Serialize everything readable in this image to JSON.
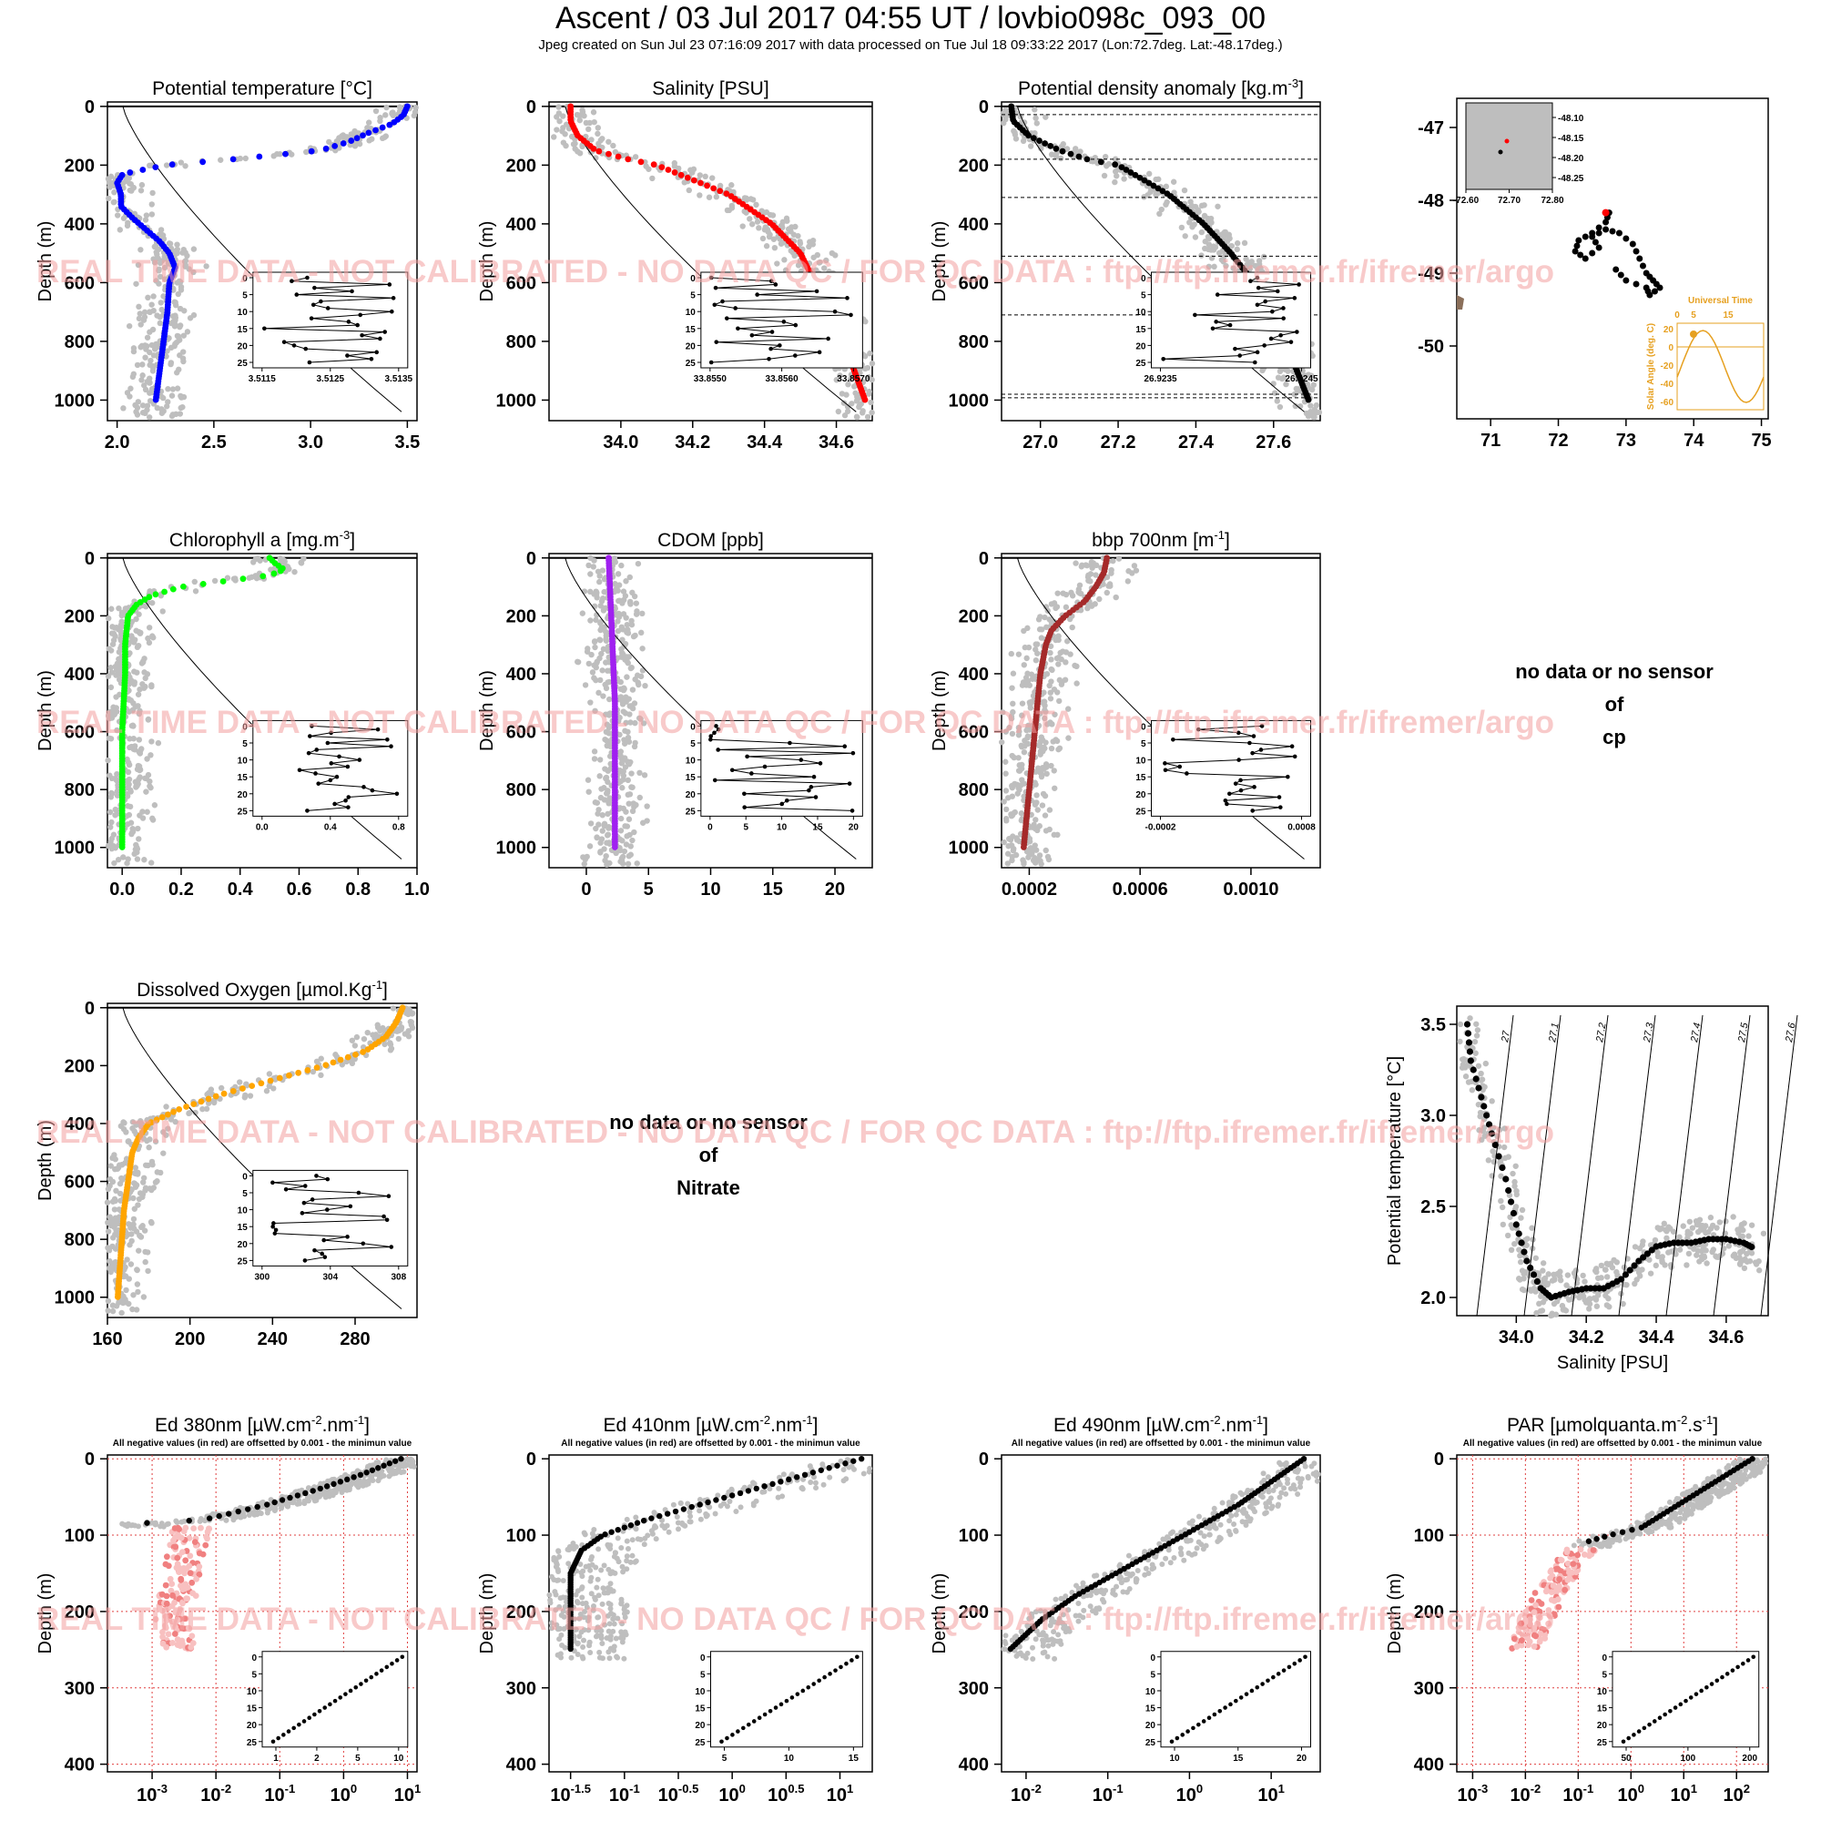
{
  "header": {
    "title": "Ascent / 03 Jul 2017 04:55 UT /  lovbio098c_093_00",
    "subtitle": "Jpeg created on Sun Jul 23 07:16:09 2017 with data processed on Tue Jul 18 09:33:22 2017 (Lon:72.7deg. Lat:-48.17deg.)"
  },
  "watermark": "REAL TIME DATA - NOT CALIBRATED - NO DATA QC   /  FOR QC DATA : ftp://ftp.ifremer.fr/ifremer/argo",
  "depth_label": "Depth (m)",
  "negative_note": "All negative values (in red) are offsetted by 0.001 - the minimun value",
  "colors": {
    "temperature": "#0000ff",
    "salinity": "#ff0000",
    "density": "#000000",
    "chlorophyll": "#00ff00",
    "cdom": "#a020f0",
    "bbp": "#a52a2a",
    "oxygen": "#ffa500",
    "radiometry": "#000000",
    "negative": "#f08080",
    "climatology": "#bebebe",
    "orange_axis": "#e6a020"
  },
  "nodata_cp": [
    "no data or no sensor",
    "of",
    "cp"
  ],
  "nodata_nitrate": [
    "no data or no sensor",
    "of",
    "Nitrate"
  ],
  "chart_data": [
    {
      "type": "scatter",
      "title": "Potential temperature [°C]",
      "ylabel": "Depth (m)",
      "xlim": [
        1.95,
        3.55
      ],
      "ylim": [
        1070,
        -15
      ],
      "grid": false,
      "xticks": [
        "2.0",
        "2.5",
        "3.0",
        "3.5"
      ],
      "yticks": [
        "0",
        "200",
        "400",
        "600",
        "800",
        "1000"
      ],
      "profile": {
        "depth": [
          0,
          30,
          60,
          90,
          120,
          150,
          180,
          200,
          230,
          260,
          300,
          340,
          380,
          420,
          460,
          500,
          550,
          600,
          700,
          800,
          900,
          1000
        ],
        "value": [
          3.5,
          3.48,
          3.42,
          3.3,
          3.2,
          3.05,
          2.6,
          2.25,
          2.03,
          2.0,
          2.02,
          2.02,
          2.08,
          2.15,
          2.22,
          2.27,
          2.3,
          2.27,
          2.26,
          2.24,
          2.22,
          2.2
        ]
      },
      "inset": {
        "xticks": [
          "3.5115",
          "3.5125",
          "3.5135"
        ],
        "yticks": [
          "0",
          "5",
          "10",
          "15",
          "20",
          "25"
        ]
      }
    },
    {
      "type": "scatter",
      "title": "Salinity [PSU]",
      "ylabel": "Depth (m)",
      "xlim": [
        33.8,
        34.7
      ],
      "ylim": [
        1070,
        -15
      ],
      "grid": false,
      "xticks": [
        "34.0",
        "34.2",
        "34.4",
        "34.6"
      ],
      "yticks": [
        "0",
        "200",
        "400",
        "600",
        "800",
        "1000"
      ],
      "profile": {
        "depth": [
          0,
          50,
          100,
          150,
          180,
          200,
          250,
          300,
          400,
          500,
          600,
          700,
          800,
          900,
          1000
        ],
        "value": [
          33.86,
          33.86,
          33.88,
          33.93,
          34.02,
          34.1,
          34.2,
          34.3,
          34.42,
          34.5,
          34.54,
          34.58,
          34.62,
          34.65,
          34.68
        ]
      },
      "inset": {
        "xticks": [
          "33.8550",
          "33.8560",
          "33.8570"
        ],
        "yticks": [
          "0",
          "5",
          "10",
          "15",
          "20",
          "25"
        ]
      }
    },
    {
      "type": "scatter",
      "title": "Potential density anomaly [kg.m",
      "title_sup": "-3",
      "title_end": "]",
      "ylabel": "Depth (m)",
      "xlim": [
        26.9,
        27.72
      ],
      "ylim": [
        1070,
        -15
      ],
      "grid": false,
      "xticks": [
        "27.0",
        "27.2",
        "27.4",
        "27.6"
      ],
      "yticks": [
        "0",
        "200",
        "400",
        "600",
        "800",
        "1000"
      ],
      "mld_lines": [
        28,
        180,
        310,
        510,
        710,
        980,
        992
      ],
      "profile": {
        "depth": [
          0,
          50,
          100,
          150,
          180,
          200,
          300,
          400,
          500,
          600,
          700,
          800,
          900,
          1000
        ],
        "value": [
          26.925,
          26.93,
          26.97,
          27.05,
          27.12,
          27.2,
          27.33,
          27.42,
          27.49,
          27.55,
          27.59,
          27.63,
          27.66,
          27.69
        ]
      },
      "inset": {
        "xticks": [
          "26.9235",
          "26.9245"
        ],
        "yticks": [
          "0",
          "5",
          "10",
          "15",
          "20",
          "25"
        ]
      }
    },
    {
      "type": "scatter",
      "title": "Chlorophyll a [mg.m",
      "title_sup": "-3",
      "title_end": "]",
      "ylabel": "Depth (m)",
      "xlim": [
        -0.05,
        1.0
      ],
      "ylim": [
        1070,
        -15
      ],
      "grid": false,
      "xticks": [
        "0.0",
        "0.2",
        "0.4",
        "0.6",
        "0.8",
        "1.0"
      ],
      "yticks": [
        "0",
        "200",
        "400",
        "600",
        "800",
        "1000"
      ],
      "profile": {
        "depth": [
          0,
          20,
          40,
          60,
          80,
          100,
          130,
          160,
          200,
          300,
          400,
          600,
          800,
          1000
        ],
        "value": [
          0.5,
          0.52,
          0.55,
          0.5,
          0.35,
          0.2,
          0.1,
          0.05,
          0.02,
          0.01,
          0.01,
          0.0,
          0.0,
          0.0
        ]
      },
      "inset": {
        "xticks": [
          "0.0",
          "0.4",
          "0.8"
        ],
        "yticks": [
          "0",
          "5",
          "10",
          "15",
          "20",
          "25"
        ]
      }
    },
    {
      "type": "scatter",
      "title": "CDOM [ppb]",
      "ylabel": "Depth (m)",
      "xlim": [
        -3,
        23
      ],
      "ylim": [
        1070,
        -15
      ],
      "grid": false,
      "xticks": [
        "0",
        "5",
        "10",
        "15",
        "20"
      ],
      "yticks": [
        "0",
        "200",
        "400",
        "600",
        "800",
        "1000"
      ],
      "profile": {
        "depth": [
          0,
          100,
          200,
          300,
          400,
          500,
          600,
          700,
          800,
          900,
          1000
        ],
        "value": [
          1.8,
          1.9,
          2.0,
          2.1,
          2.2,
          2.3,
          2.3,
          2.3,
          2.3,
          2.3,
          2.3
        ]
      },
      "inset": {
        "xticks": [
          "0",
          "5",
          "10",
          "15",
          "20"
        ],
        "yticks": [
          "0",
          "5",
          "10",
          "15",
          "20",
          "25"
        ]
      }
    },
    {
      "type": "scatter",
      "title": "bbp 700nm [m",
      "title_sup": "-1",
      "title_end": "]",
      "ylabel": "Depth (m)",
      "xlim": [
        0.0001,
        0.00125
      ],
      "ylim": [
        1070,
        -15
      ],
      "grid": false,
      "xticks": [
        "0.0002",
        "0.0006",
        "0.0010"
      ],
      "yticks": [
        "0",
        "200",
        "400",
        "600",
        "800",
        "1000"
      ],
      "profile": {
        "depth": [
          0,
          50,
          100,
          150,
          200,
          250,
          300,
          400,
          500,
          600,
          700,
          800,
          900,
          1000
        ],
        "value": [
          0.00048,
          0.00047,
          0.00044,
          0.0004,
          0.00033,
          0.00028,
          0.00026,
          0.00024,
          0.00023,
          0.00022,
          0.00021,
          0.0002,
          0.00019,
          0.00018
        ]
      },
      "inset": {
        "xticks": [
          "-0.0002",
          "0.0008"
        ],
        "yticks": [
          "0",
          "5",
          "10",
          "15",
          "20",
          "25"
        ]
      }
    },
    {
      "type": "scatter",
      "title": "Dissolved Oxygen [µmol.Kg",
      "title_sup": "-1",
      "title_end": "]",
      "ylabel": "Depth (m)",
      "xlim": [
        160,
        310
      ],
      "ylim": [
        1070,
        -15
      ],
      "grid": false,
      "xticks": [
        "160",
        "200",
        "240",
        "280"
      ],
      "yticks": [
        "0",
        "200",
        "400",
        "600",
        "800",
        "1000"
      ],
      "profile": {
        "depth": [
          0,
          50,
          100,
          150,
          200,
          250,
          300,
          350,
          400,
          450,
          500,
          600,
          700,
          800,
          900,
          1000
        ],
        "value": [
          303,
          300,
          295,
          285,
          265,
          240,
          215,
          195,
          180,
          175,
          172,
          170,
          168,
          167,
          166,
          165
        ]
      },
      "inset": {
        "xticks": [
          "300",
          "304",
          "308"
        ],
        "yticks": [
          "0",
          "5",
          "10",
          "15",
          "20",
          "25"
        ]
      }
    },
    {
      "type": "scatter",
      "title": "",
      "xlabel": "Salinity [PSU]",
      "ylabel": "Potential temperature [°C]",
      "xlim": [
        33.83,
        34.72
      ],
      "ylim": [
        1.9,
        3.6
      ],
      "grid": false,
      "xticks": [
        "34.0",
        "34.2",
        "34.4",
        "34.6"
      ],
      "yticks": [
        "2.0",
        "2.5",
        "3.0",
        "3.5"
      ],
      "isopycnal_labels": [
        "27",
        "27.1",
        "27.2",
        "27.3",
        "27.4",
        "27.5",
        "27.6"
      ],
      "x": [
        33.86,
        33.87,
        33.9,
        33.93,
        33.97,
        34.0,
        34.03,
        34.07,
        34.1,
        34.15,
        34.2,
        34.25,
        34.3,
        34.35,
        34.4,
        34.45,
        34.5,
        34.55,
        34.6,
        34.65,
        34.68
      ],
      "y": [
        3.5,
        3.3,
        3.1,
        2.9,
        2.65,
        2.4,
        2.2,
        2.05,
        2.0,
        2.03,
        2.05,
        2.05,
        2.1,
        2.2,
        2.28,
        2.3,
        2.3,
        2.32,
        2.32,
        2.3,
        2.27
      ]
    },
    {
      "type": "map",
      "xlim": [
        70.5,
        75.1
      ],
      "ylim": [
        -51,
        -46.6
      ],
      "xticks": [
        "71",
        "72",
        "73",
        "74",
        "75"
      ],
      "yticks": [
        "-47",
        "-48",
        "-49",
        "-50"
      ],
      "track_lon": [
        72.75,
        72.7,
        72.5,
        72.3,
        72.25,
        72.4,
        72.6,
        72.5,
        72.7,
        72.9,
        73.1,
        73.2,
        73.3,
        73.4,
        73.5,
        73.35,
        73.3,
        73.0,
        72.85
      ],
      "track_lat": [
        -48.17,
        -48.3,
        -48.45,
        -48.55,
        -48.7,
        -48.8,
        -48.65,
        -48.5,
        -48.4,
        -48.45,
        -48.6,
        -48.8,
        -49.0,
        -49.1,
        -49.2,
        -49.3,
        -49.2,
        -49.1,
        -48.95
      ],
      "last_position": {
        "lon": 72.7,
        "lat": -48.17
      },
      "inset": {
        "xticks": [
          "-72.60",
          "72.70",
          "72.80"
        ],
        "yticks": [
          "-48.10",
          "-48.15",
          "-48.20",
          "-48.25"
        ]
      },
      "sun_inset": {
        "xlabel": "Universal Time",
        "ylabel": "Solar Angle (deg. C)",
        "xticks": [
          "0",
          "5",
          "15"
        ],
        "yticks": [
          "20",
          "0",
          "-20",
          "-40",
          "-60"
        ]
      }
    },
    {
      "type": "scatter",
      "title": "Ed 380nm [µW.cm",
      "title_sup": "-2",
      "title_mid": ".nm",
      "title_sup2": "-1",
      "title_end": "]",
      "xscale": "log",
      "xlim_log10": [
        -3.7,
        1.15
      ],
      "ylim": [
        410,
        -5
      ],
      "grid": true,
      "xticks_exp": [
        "-3",
        "-2",
        "-1",
        "0",
        "1"
      ],
      "yticks": [
        "0",
        "100",
        "200",
        "300",
        "400"
      ],
      "profile": {
        "depth": [
          0,
          20,
          40,
          60,
          80,
          85
        ],
        "log10_value": [
          0.9,
          0.3,
          -0.4,
          -1.2,
          -2.2,
          -3.3
        ]
      },
      "negative": {
        "depth": [
          90,
          110,
          130,
          150,
          170,
          190,
          210,
          230,
          250
        ],
        "log10_value": [
          -2.4,
          -2.45,
          -2.5,
          -2.55,
          -2.6,
          -2.6,
          -2.65,
          -2.6,
          -2.65
        ]
      },
      "inset": {
        "xticks": [
          "1",
          "2",
          "5",
          "10"
        ],
        "yticks": [
          "0",
          "5",
          "10",
          "15",
          "20",
          "25"
        ]
      }
    },
    {
      "type": "scatter",
      "title": "Ed 410nm [µW.cm",
      "title_sup": "-2",
      "title_mid": ".nm",
      "title_sup2": "-1",
      "title_end": "]",
      "xscale": "log",
      "xlim_log10": [
        -1.7,
        1.3
      ],
      "ylim": [
        410,
        -5
      ],
      "grid": false,
      "xticks_exp": [
        "-1.5",
        "-1",
        "-0.5",
        "0",
        "0.5",
        "1"
      ],
      "yticks": [
        "0",
        "100",
        "200",
        "300",
        "400"
      ],
      "profile": {
        "depth": [
          0,
          20,
          40,
          60,
          80,
          100,
          120,
          150,
          200,
          250
        ],
        "log10_value": [
          1.2,
          0.7,
          0.2,
          -0.3,
          -0.8,
          -1.2,
          -1.4,
          -1.5,
          -1.5,
          -1.5
        ]
      },
      "inset": {
        "xticks": [
          "5",
          "10",
          "15"
        ],
        "yticks": [
          "0",
          "5",
          "10",
          "15",
          "20",
          "25"
        ]
      }
    },
    {
      "type": "scatter",
      "title": "Ed 490nm [µW.cm",
      "title_sup": "-2",
      "title_mid": ".nm",
      "title_sup2": "-1",
      "title_end": "]",
      "xscale": "log",
      "xlim_log10": [
        -2.3,
        1.6
      ],
      "ylim": [
        410,
        -5
      ],
      "grid": false,
      "xticks_exp": [
        "-2",
        "-1",
        "0",
        "1"
      ],
      "yticks": [
        "0",
        "100",
        "200",
        "300",
        "400"
      ],
      "profile": {
        "depth": [
          0,
          30,
          60,
          90,
          120,
          150,
          180,
          210,
          240,
          250
        ],
        "log10_value": [
          1.4,
          1.0,
          0.6,
          0.1,
          -0.4,
          -0.9,
          -1.4,
          -1.8,
          -2.1,
          -2.2
        ]
      },
      "inset": {
        "xticks": [
          "10",
          "15",
          "20"
        ],
        "yticks": [
          "0",
          "5",
          "10",
          "15",
          "20",
          "25"
        ]
      }
    },
    {
      "type": "scatter",
      "title": "PAR [µmolquanta.m",
      "title_sup": "-2",
      "title_mid": ".s",
      "title_sup2": "-1",
      "title_end": "]",
      "xscale": "log",
      "xlim_log10": [
        -3.3,
        2.6
      ],
      "ylim": [
        410,
        -5
      ],
      "grid": true,
      "xticks_exp": [
        "-3",
        "-2",
        "-1",
        "0",
        "1",
        "2"
      ],
      "yticks": [
        "0",
        "100",
        "200",
        "300",
        "400"
      ],
      "profile": {
        "depth": [
          0,
          30,
          60,
          90,
          100,
          110
        ],
        "log10_value": [
          2.3,
          1.6,
          0.9,
          0.2,
          -0.4,
          -0.9
        ]
      },
      "negative": {
        "depth": [
          115,
          140,
          170,
          200,
          230,
          250
        ],
        "log10_value": [
          -0.9,
          -1.2,
          -1.5,
          -1.7,
          -1.9,
          -2.0
        ]
      },
      "inset": {
        "xticks": [
          "50",
          "100",
          "200"
        ],
        "yticks": [
          "0",
          "5",
          "10",
          "15",
          "20",
          "25"
        ]
      }
    }
  ]
}
